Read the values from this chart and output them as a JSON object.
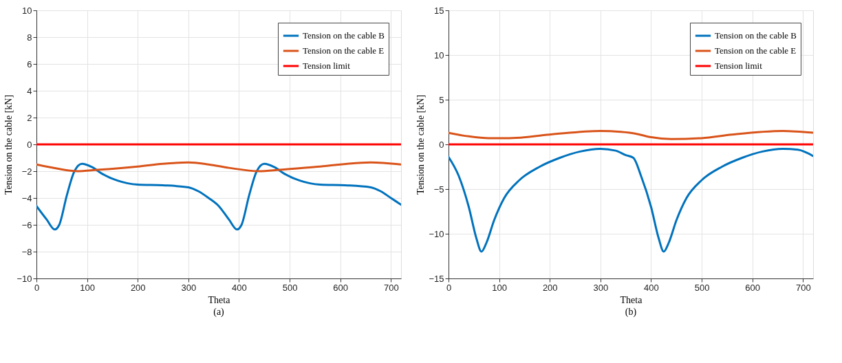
{
  "chart_data": [
    {
      "type": "line",
      "xlabel": "Theta",
      "ylabel": "Tension on the cable [kN]",
      "annotations": [
        "(a)"
      ],
      "xlim": [
        0,
        720
      ],
      "xticks": [
        0,
        100,
        200,
        300,
        400,
        500,
        600,
        700
      ],
      "ylim": [
        -10,
        10
      ],
      "yticks": [
        -10,
        -8,
        -6,
        -4,
        -2,
        0,
        2,
        4,
        6,
        8,
        10
      ],
      "grid": true,
      "legend": "top right",
      "line_style": "solid",
      "marker": "none",
      "series": [
        {
          "name": "Tension on the cable B",
          "color": "#0072bd",
          "x": [
            0,
            20,
            36,
            45,
            60,
            75,
            90,
            110,
            130,
            160,
            200,
            250,
            300,
            320,
            340,
            360,
            380,
            396,
            405,
            420,
            435,
            450,
            470,
            490,
            520,
            560,
            610,
            660,
            680,
            700,
            720
          ],
          "values": [
            -4.6,
            -5.6,
            -6.35,
            -6,
            -3.8,
            -2,
            -1.45,
            -1.7,
            -2.2,
            -2.7,
            -3.0,
            -3.05,
            -3.2,
            -3.5,
            -4.0,
            -4.6,
            -5.6,
            -6.35,
            -6,
            -3.8,
            -2,
            -1.45,
            -1.7,
            -2.2,
            -2.7,
            -3.0,
            -3.05,
            -3.2,
            -3.5,
            -4.0,
            -4.5
          ]
        },
        {
          "name": "Tension on the cable E",
          "color": "#d95319",
          "x": [
            0,
            40,
            80,
            120,
            200,
            250,
            300,
            340,
            380,
            440,
            480,
            560,
            660,
            720
          ],
          "values": [
            -1.5,
            -1.8,
            -2.0,
            -1.9,
            -1.65,
            -1.45,
            -1.35,
            -1.5,
            -1.75,
            -2.0,
            -1.9,
            -1.65,
            -1.35,
            -1.5
          ]
        },
        {
          "name": "Tension limit",
          "color": "#ff0000",
          "x": [
            0,
            720
          ],
          "values": [
            0,
            0
          ]
        }
      ]
    },
    {
      "type": "line",
      "xlabel": "Theta",
      "ylabel": "Tension on the cable [kN]",
      "annotations": [
        "(b)"
      ],
      "xlim": [
        0,
        720
      ],
      "xticks": [
        0,
        100,
        200,
        300,
        400,
        500,
        600,
        700
      ],
      "ylim": [
        -15,
        15
      ],
      "yticks": [
        -15,
        -10,
        -5,
        0,
        5,
        10,
        15
      ],
      "grid": true,
      "legend": "top right",
      "line_style": "solid",
      "marker": "none",
      "series": [
        {
          "name": "Tension on the cable B",
          "color": "#0072bd",
          "x": [
            0,
            20,
            40,
            55,
            65,
            75,
            90,
            110,
            140,
            180,
            220,
            260,
            300,
            330,
            350,
            365,
            380,
            400,
            415,
            425,
            435,
            450,
            470,
            500,
            540,
            580,
            620,
            660,
            690,
            720
          ],
          "values": [
            -1.4,
            -3.5,
            -7,
            -10.5,
            -12,
            -11,
            -8.5,
            -6,
            -4,
            -2.5,
            -1.5,
            -0.8,
            -0.5,
            -0.7,
            -1.2,
            -1.5,
            -3.5,
            -7,
            -10.5,
            -12,
            -11,
            -8.5,
            -6,
            -4,
            -2.5,
            -1.5,
            -0.8,
            -0.5,
            -0.6,
            -1.3
          ]
        },
        {
          "name": "Tension on the cable E",
          "color": "#d95319",
          "x": [
            0,
            40,
            80,
            120,
            200,
            300,
            340,
            370,
            400,
            440,
            500,
            560,
            660,
            720
          ],
          "values": [
            1.3,
            0.9,
            0.7,
            0.7,
            1.1,
            1.5,
            1.4,
            1.2,
            0.8,
            0.6,
            0.7,
            1.1,
            1.5,
            1.3
          ]
        },
        {
          "name": "Tension limit",
          "color": "#ff0000",
          "x": [
            0,
            720
          ],
          "values": [
            0,
            0
          ]
        }
      ]
    }
  ]
}
